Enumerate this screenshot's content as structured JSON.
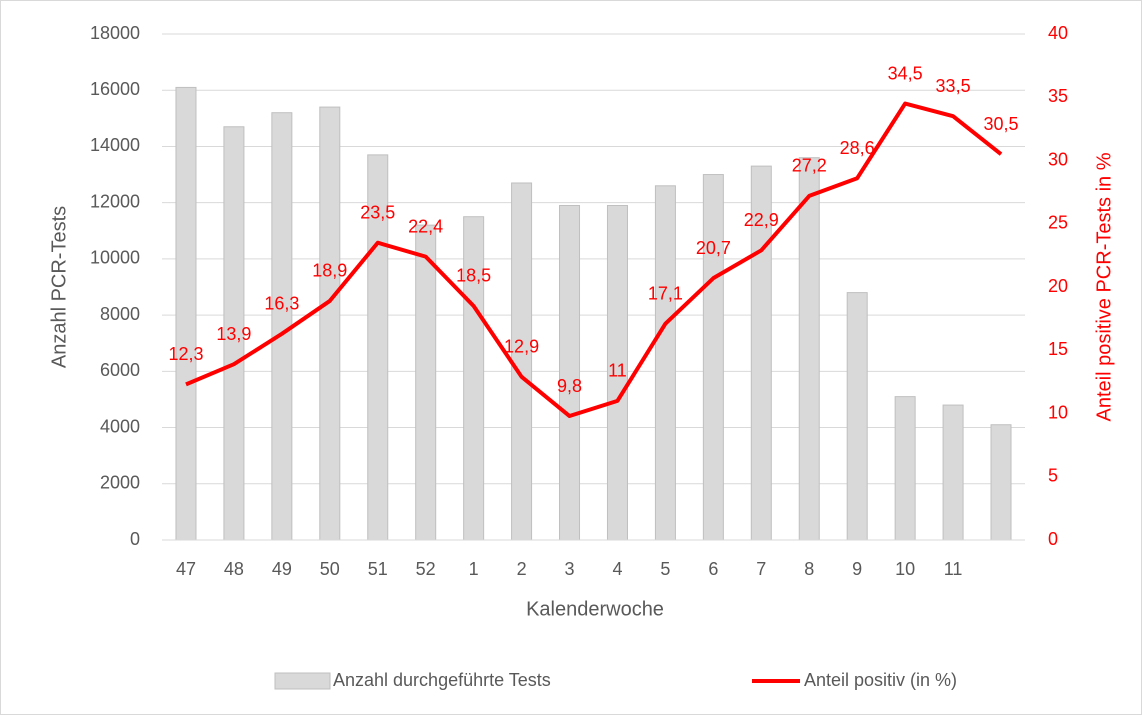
{
  "chart_data": {
    "type": "combo",
    "x_label": "Kalenderwoche",
    "y_label": "Anzahl PCR-Tests",
    "y2_label": "Anteil positive PCR-Tests in %",
    "categories": [
      "47",
      "48",
      "49",
      "50",
      "51",
      "52",
      "1",
      "2",
      "3",
      "4",
      "5",
      "6",
      "7",
      "8",
      "9",
      "10",
      "11",
      null
    ],
    "series": [
      {
        "name": "Anzahl durchgeführte Tests",
        "type": "bar",
        "color": "#d9d9d9",
        "values": [
          16100,
          14700,
          15200,
          15400,
          13700,
          11200,
          11500,
          12700,
          11900,
          11900,
          12600,
          13000,
          13300,
          13600,
          8800,
          5100,
          4800,
          4100
        ]
      },
      {
        "name": "Anteil positiv (in %)",
        "type": "line",
        "axis": "y2",
        "color": "#ff0000",
        "values": [
          12.3,
          13.9,
          16.3,
          18.9,
          23.5,
          22.4,
          18.5,
          12.9,
          9.8,
          11,
          17.1,
          20.7,
          22.9,
          27.2,
          28.6,
          34.5,
          33.5,
          30.5
        ],
        "value_labels": [
          "12,3",
          "13,9",
          "16,3",
          "18,9",
          "23,5",
          "22,4",
          "18,5",
          "12,9",
          "9,8",
          "11",
          "17,1",
          "20,7",
          "22,9",
          "27,2",
          "28,6",
          "34,5",
          "33,5",
          "30,5"
        ]
      }
    ],
    "ylim": [
      0,
      18000
    ],
    "yticks": [
      0,
      2000,
      4000,
      6000,
      8000,
      10000,
      12000,
      14000,
      16000,
      18000
    ],
    "y2lim": [
      0,
      40
    ],
    "y2ticks": [
      0,
      5,
      10,
      15,
      20,
      25,
      30,
      35,
      40
    ],
    "grid": true,
    "legend": "bottom"
  }
}
